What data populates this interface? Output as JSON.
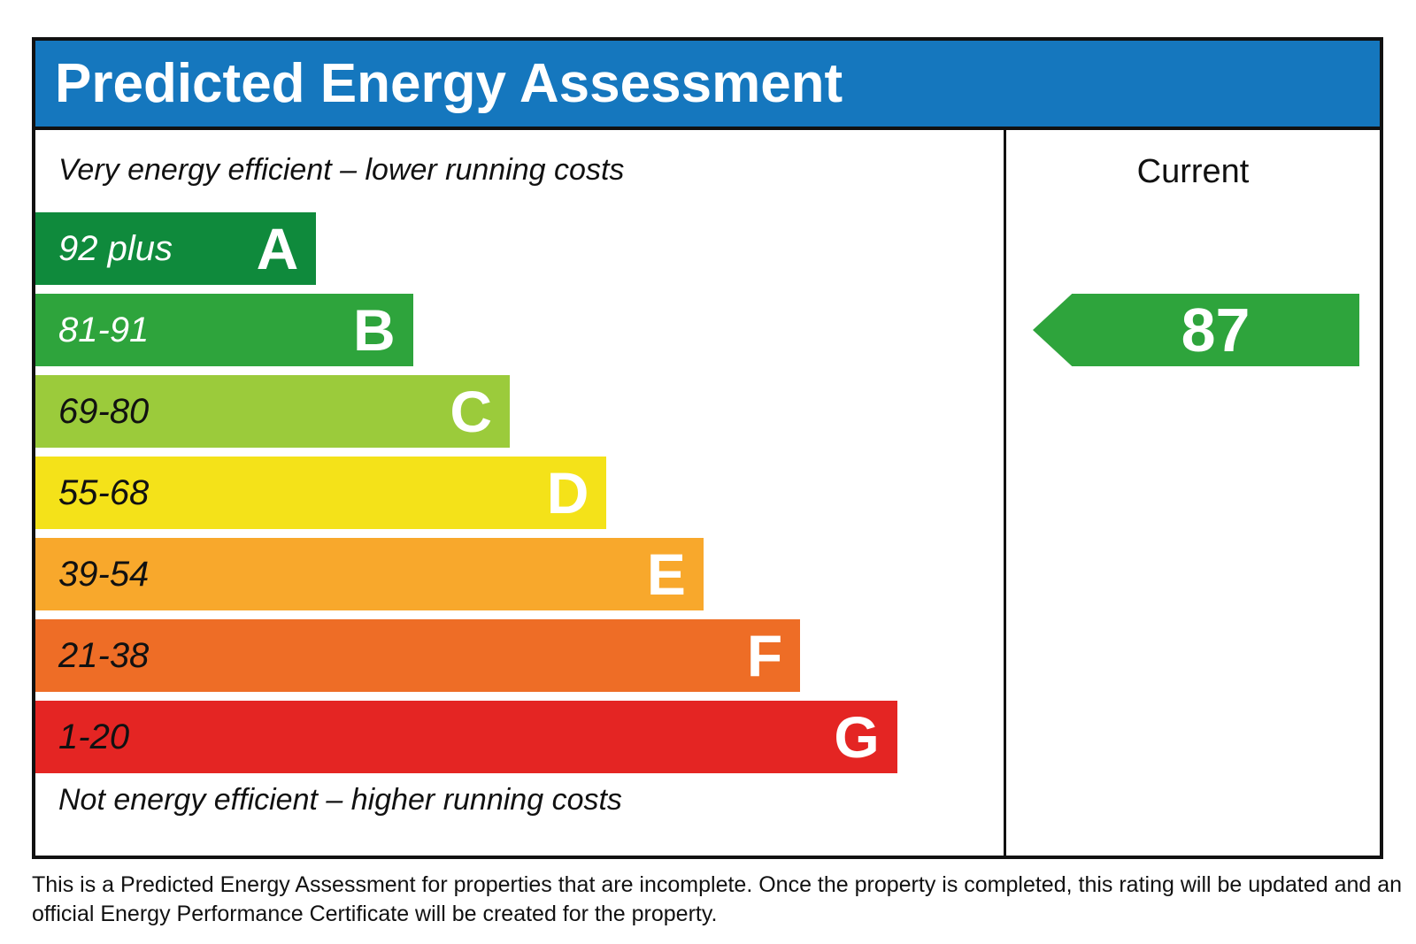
{
  "header": {
    "title": "Predicted Energy Assessment"
  },
  "chart_data": {
    "type": "bar",
    "orientation": "horizontal",
    "title": "Predicted Energy Assessment",
    "top_caption": "Very energy efficient – lower running costs",
    "bottom_caption": "Not energy efficient – higher running costs",
    "column_header": "Current",
    "bands": [
      {
        "letter": "A",
        "range": "92 plus",
        "color": "#0f8a3c",
        "range_text_color": "#ffffff",
        "width_pct": 29
      },
      {
        "letter": "B",
        "range": "81-91",
        "color": "#2ea43c",
        "range_text_color": "#ffffff",
        "width_pct": 39
      },
      {
        "letter": "C",
        "range": "69-80",
        "color": "#9bcb3b",
        "range_text_color": "#111111",
        "width_pct": 49
      },
      {
        "letter": "D",
        "range": "55-68",
        "color": "#f4e219",
        "range_text_color": "#111111",
        "width_pct": 59
      },
      {
        "letter": "E",
        "range": "39-54",
        "color": "#f8a82c",
        "range_text_color": "#111111",
        "width_pct": 69
      },
      {
        "letter": "F",
        "range": "21-38",
        "color": "#ee6d26",
        "range_text_color": "#111111",
        "width_pct": 79
      },
      {
        "letter": "G",
        "range": "1-20",
        "color": "#e42523",
        "range_text_color": "#111111",
        "width_pct": 89
      }
    ],
    "current": {
      "value": "87",
      "band": "B",
      "arrow_color": "#2ea43c"
    }
  },
  "footer": {
    "lines": [
      "This is a Predicted Energy Assessment for properties that are incomplete. Once the property is completed, this rating will be updated and an",
      "official Energy Performance Certificate will be created for the property."
    ]
  },
  "colors": {
    "header_bg": "#1577be",
    "border": "#111111"
  }
}
